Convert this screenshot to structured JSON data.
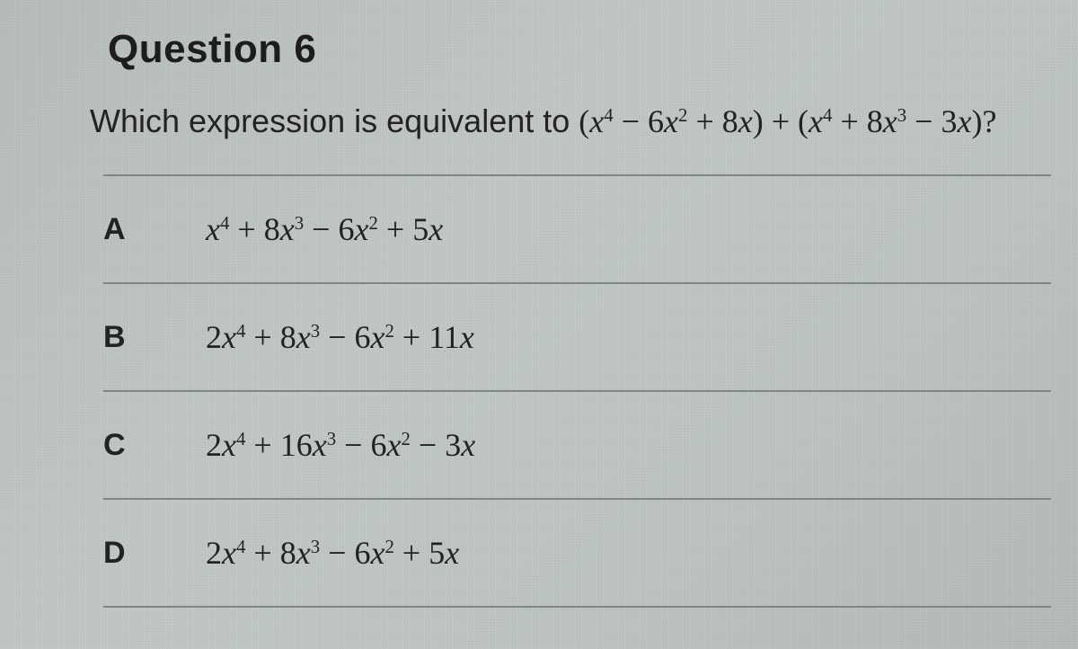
{
  "title": "Question 6",
  "prompt_lead": "Which expression is equivalent to  ",
  "prompt_expression_html": "(<span class='ital'>x</span><sup>4</sup> − 6<span class='ital'>x</span><sup>2</sup> + 8<span class='ital'>x</span>) + (<span class='ital'>x</span><sup>4</sup> + 8<span class='ital'>x</span><sup>3</sup> − 3<span class='ital'>x</span>)?",
  "colors": {
    "text": "#222222",
    "rule": "#7e8683",
    "background": "#b9c0bd"
  },
  "typography": {
    "title_fontsize_pt": 33,
    "body_fontsize_pt": 27,
    "math_font_family": "Cambria Math / Times New Roman serif",
    "ui_font_family": "Helvetica Neue / Arial sans-serif"
  },
  "options": [
    {
      "label": "A",
      "expression_html": "<span class='ital'>x</span><sup>4</sup> + 8<span class='ital'>x</span><sup>3</sup> − 6<span class='ital'>x</span><sup>2</sup> + 5<span class='ital'>x</span>"
    },
    {
      "label": "B",
      "expression_html": "2<span class='ital'>x</span><sup>4</sup> + 8<span class='ital'>x</span><sup>3</sup> − 6<span class='ital'>x</span><sup>2</sup> + 11<span class='ital'>x</span>"
    },
    {
      "label": "C",
      "expression_html": "2<span class='ital'>x</span><sup>4</sup> + 16<span class='ital'>x</span><sup>3</sup> − 6<span class='ital'>x</span><sup>2</sup> − 3<span class='ital'>x</span>"
    },
    {
      "label": "D",
      "expression_html": "2<span class='ital'>x</span><sup>4</sup> + 8<span class='ital'>x</span><sup>3</sup> − 6<span class='ital'>x</span><sup>2</sup> + 5<span class='ital'>x</span>"
    }
  ]
}
